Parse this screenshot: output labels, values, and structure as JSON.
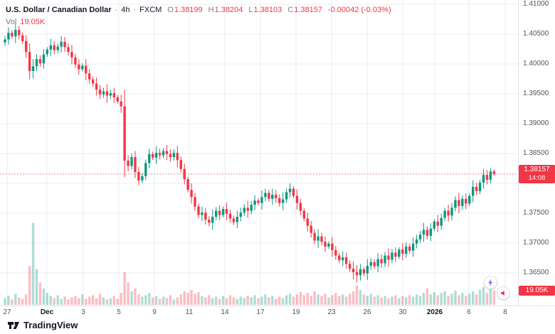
{
  "header": {
    "symbol": "U.S. Dollar / Canadian Dollar",
    "sep": "·",
    "interval": "4h",
    "exchange": "FXCM",
    "ohlc": {
      "o_label": "O",
      "o": "1.38199",
      "h_label": "H",
      "h": "1.38204",
      "l_label": "L",
      "l": "1.38103",
      "c_label": "C",
      "c": "1.38157",
      "change": "-0.00042 (-0.03%)"
    },
    "vol_label": "Vol",
    "vol_value": "19.05K"
  },
  "price_axis": {
    "labels": [
      {
        "text": "1.41000",
        "price": 1.41
      },
      {
        "text": "1.40500",
        "price": 1.405
      },
      {
        "text": "1.40000",
        "price": 1.4
      },
      {
        "text": "1.39500",
        "price": 1.395
      },
      {
        "text": "1.39000",
        "price": 1.39
      },
      {
        "text": "1.38500",
        "price": 1.385
      },
      {
        "text": "1.37500",
        "price": 1.375
      },
      {
        "text": "1.37000",
        "price": 1.37
      },
      {
        "text": "1.36500",
        "price": 1.365
      }
    ],
    "badge_price": "1.38157",
    "badge_countdown": "14:08",
    "volume_badge": "19.05K"
  },
  "time_axis": {
    "ticks": [
      {
        "label": "27",
        "x": 10
      },
      {
        "label": "Dec",
        "x": 66,
        "bold": true
      },
      {
        "label": "3",
        "x": 117
      },
      {
        "label": "5",
        "x": 167
      },
      {
        "label": "9",
        "x": 217
      },
      {
        "label": "11",
        "x": 266
      },
      {
        "label": "14",
        "x": 316
      },
      {
        "label": "17",
        "x": 366
      },
      {
        "label": "19",
        "x": 416
      },
      {
        "label": "23",
        "x": 466
      },
      {
        "label": "26",
        "x": 516
      },
      {
        "label": "30",
        "x": 566
      },
      {
        "label": "2026",
        "x": 611,
        "bold": true
      },
      {
        "label": "6",
        "x": 659
      },
      {
        "label": "8",
        "x": 710
      }
    ]
  },
  "logo": {
    "text": "TradingView"
  },
  "icons": {
    "boost_icon": "lightning-bolt",
    "alert_icon": "megaphone"
  },
  "colors": {
    "up": "#089981",
    "down": "#f23645",
    "grid": "#e9ecf3",
    "axis_text": "#50535e",
    "badge": "#f23645",
    "text_dark": "#131722",
    "text_gray": "#787b86"
  },
  "chart_data": {
    "type": "candlestick",
    "title": "U.S. Dollar / Canadian Dollar · 4h · FXCM",
    "interval": "4h",
    "exchange": "FXCM",
    "legend_position": "none",
    "grid": true,
    "ylim": [
      1.35952,
      1.4107
    ],
    "price_gridlines": [
      1.41,
      1.405,
      1.4,
      1.395,
      1.39,
      1.385,
      1.38,
      1.375,
      1.37,
      1.365
    ],
    "open_rule": "previous_close",
    "first_open": 1.4036,
    "last": {
      "open": 1.38199,
      "high": 1.38204,
      "low": 1.38103,
      "close": 1.38157,
      "change": -0.00042,
      "change_pct": -0.03
    },
    "volume_last_label": "19.05K",
    "closes": [
      1.4041,
      1.4052,
      1.4046,
      1.4057,
      1.4048,
      1.4038,
      1.402,
      1.3988,
      1.3996,
      1.4008,
      1.4001,
      1.4016,
      1.4024,
      1.4031,
      1.4023,
      1.4029,
      1.4037,
      1.4028,
      1.402,
      1.4011,
      1.3999,
      1.3991,
      1.3997,
      1.3984,
      1.3974,
      1.3967,
      1.3957,
      1.3949,
      1.3954,
      1.3947,
      1.3951,
      1.3944,
      1.3937,
      1.3929,
      1.3838,
      1.3829,
      1.3844,
      1.3819,
      1.3805,
      1.3812,
      1.3834,
      1.3849,
      1.3843,
      1.3851,
      1.3847,
      1.3854,
      1.3849,
      1.3844,
      1.3851,
      1.3839,
      1.3824,
      1.3807,
      1.3789,
      1.3777,
      1.3761,
      1.3747,
      1.3751,
      1.3739,
      1.3734,
      1.3744,
      1.3754,
      1.3747,
      1.3757,
      1.3749,
      1.3741,
      1.3735,
      1.3744,
      1.3751,
      1.3759,
      1.3754,
      1.3764,
      1.3771,
      1.3767,
      1.3777,
      1.3784,
      1.3774,
      1.3781,
      1.3775,
      1.3767,
      1.3773,
      1.3785,
      1.3791,
      1.3779,
      1.3767,
      1.3754,
      1.3741,
      1.3729,
      1.3717,
      1.3704,
      1.3711,
      1.3702,
      1.3694,
      1.3699,
      1.3688,
      1.3679,
      1.3671,
      1.3676,
      1.3665,
      1.3657,
      1.3651,
      1.3646,
      1.3656,
      1.3649,
      1.3662,
      1.3668,
      1.3661,
      1.3673,
      1.3666,
      1.3679,
      1.3672,
      1.3684,
      1.3677,
      1.3689,
      1.3682,
      1.3694,
      1.3687,
      1.3699,
      1.3706,
      1.3714,
      1.3722,
      1.3712,
      1.3724,
      1.3736,
      1.3729,
      1.3742,
      1.3754,
      1.3746,
      1.3759,
      1.3772,
      1.3762,
      1.3774,
      1.3766,
      1.3779,
      1.3794,
      1.3787,
      1.3801,
      1.3814,
      1.3806,
      1.38199,
      1.38157
    ],
    "wicks_0p0001": [
      6,
      9,
      4,
      11,
      7,
      5,
      10,
      14,
      12,
      8,
      6,
      9,
      4,
      11,
      7,
      5,
      10,
      8,
      6,
      12,
      6,
      9,
      4,
      11,
      7,
      5,
      10,
      8,
      6,
      12,
      6,
      9,
      4,
      11,
      28,
      9,
      6,
      10,
      8,
      5,
      6,
      9,
      4,
      11,
      7,
      5,
      10,
      8,
      6,
      12,
      6,
      9,
      4,
      11,
      7,
      5,
      10,
      8,
      6,
      12,
      6,
      9,
      4,
      11,
      7,
      5,
      10,
      8,
      6,
      12,
      6,
      9,
      4,
      11,
      7,
      5,
      10,
      8,
      6,
      12,
      6,
      9,
      4,
      11,
      7,
      5,
      10,
      8,
      6,
      12,
      6,
      9,
      4,
      11,
      7,
      5,
      10,
      8,
      6,
      12,
      12,
      9,
      4,
      11,
      7,
      5,
      10,
      8,
      6,
      12,
      6,
      9,
      4,
      11,
      7,
      5,
      10,
      8,
      6,
      12,
      6,
      9,
      4,
      11,
      7,
      5,
      10,
      8,
      6,
      12,
      6,
      9,
      4,
      11,
      7,
      5,
      10,
      8,
      6,
      3
    ],
    "volumes_k": [
      9,
      12,
      7,
      15,
      10,
      8,
      14,
      52,
      110,
      48,
      30,
      22,
      16,
      12,
      9,
      13,
      8,
      11,
      7,
      10,
      12,
      9,
      14,
      8,
      11,
      13,
      9,
      15,
      10,
      7,
      9,
      12,
      8,
      16,
      44,
      30,
      18,
      22,
      14,
      11,
      13,
      16,
      10,
      12,
      8,
      11,
      9,
      13,
      7,
      10,
      14,
      18,
      16,
      20,
      15,
      17,
      12,
      10,
      13,
      9,
      11,
      8,
      12,
      9,
      13,
      10,
      8,
      11,
      9,
      12,
      10,
      13,
      9,
      11,
      14,
      10,
      12,
      8,
      11,
      9,
      13,
      15,
      11,
      14,
      17,
      13,
      16,
      12,
      18,
      14,
      12,
      15,
      10,
      13,
      16,
      12,
      14,
      11,
      15,
      18,
      26,
      20,
      14,
      12,
      15,
      11,
      13,
      10,
      12,
      9,
      11,
      13,
      9,
      12,
      10,
      13,
      11,
      14,
      12,
      16,
      22,
      14,
      17,
      13,
      16,
      18,
      12,
      15,
      19,
      13,
      16,
      12,
      15,
      18,
      14,
      20,
      24,
      16,
      21,
      19.05
    ]
  }
}
